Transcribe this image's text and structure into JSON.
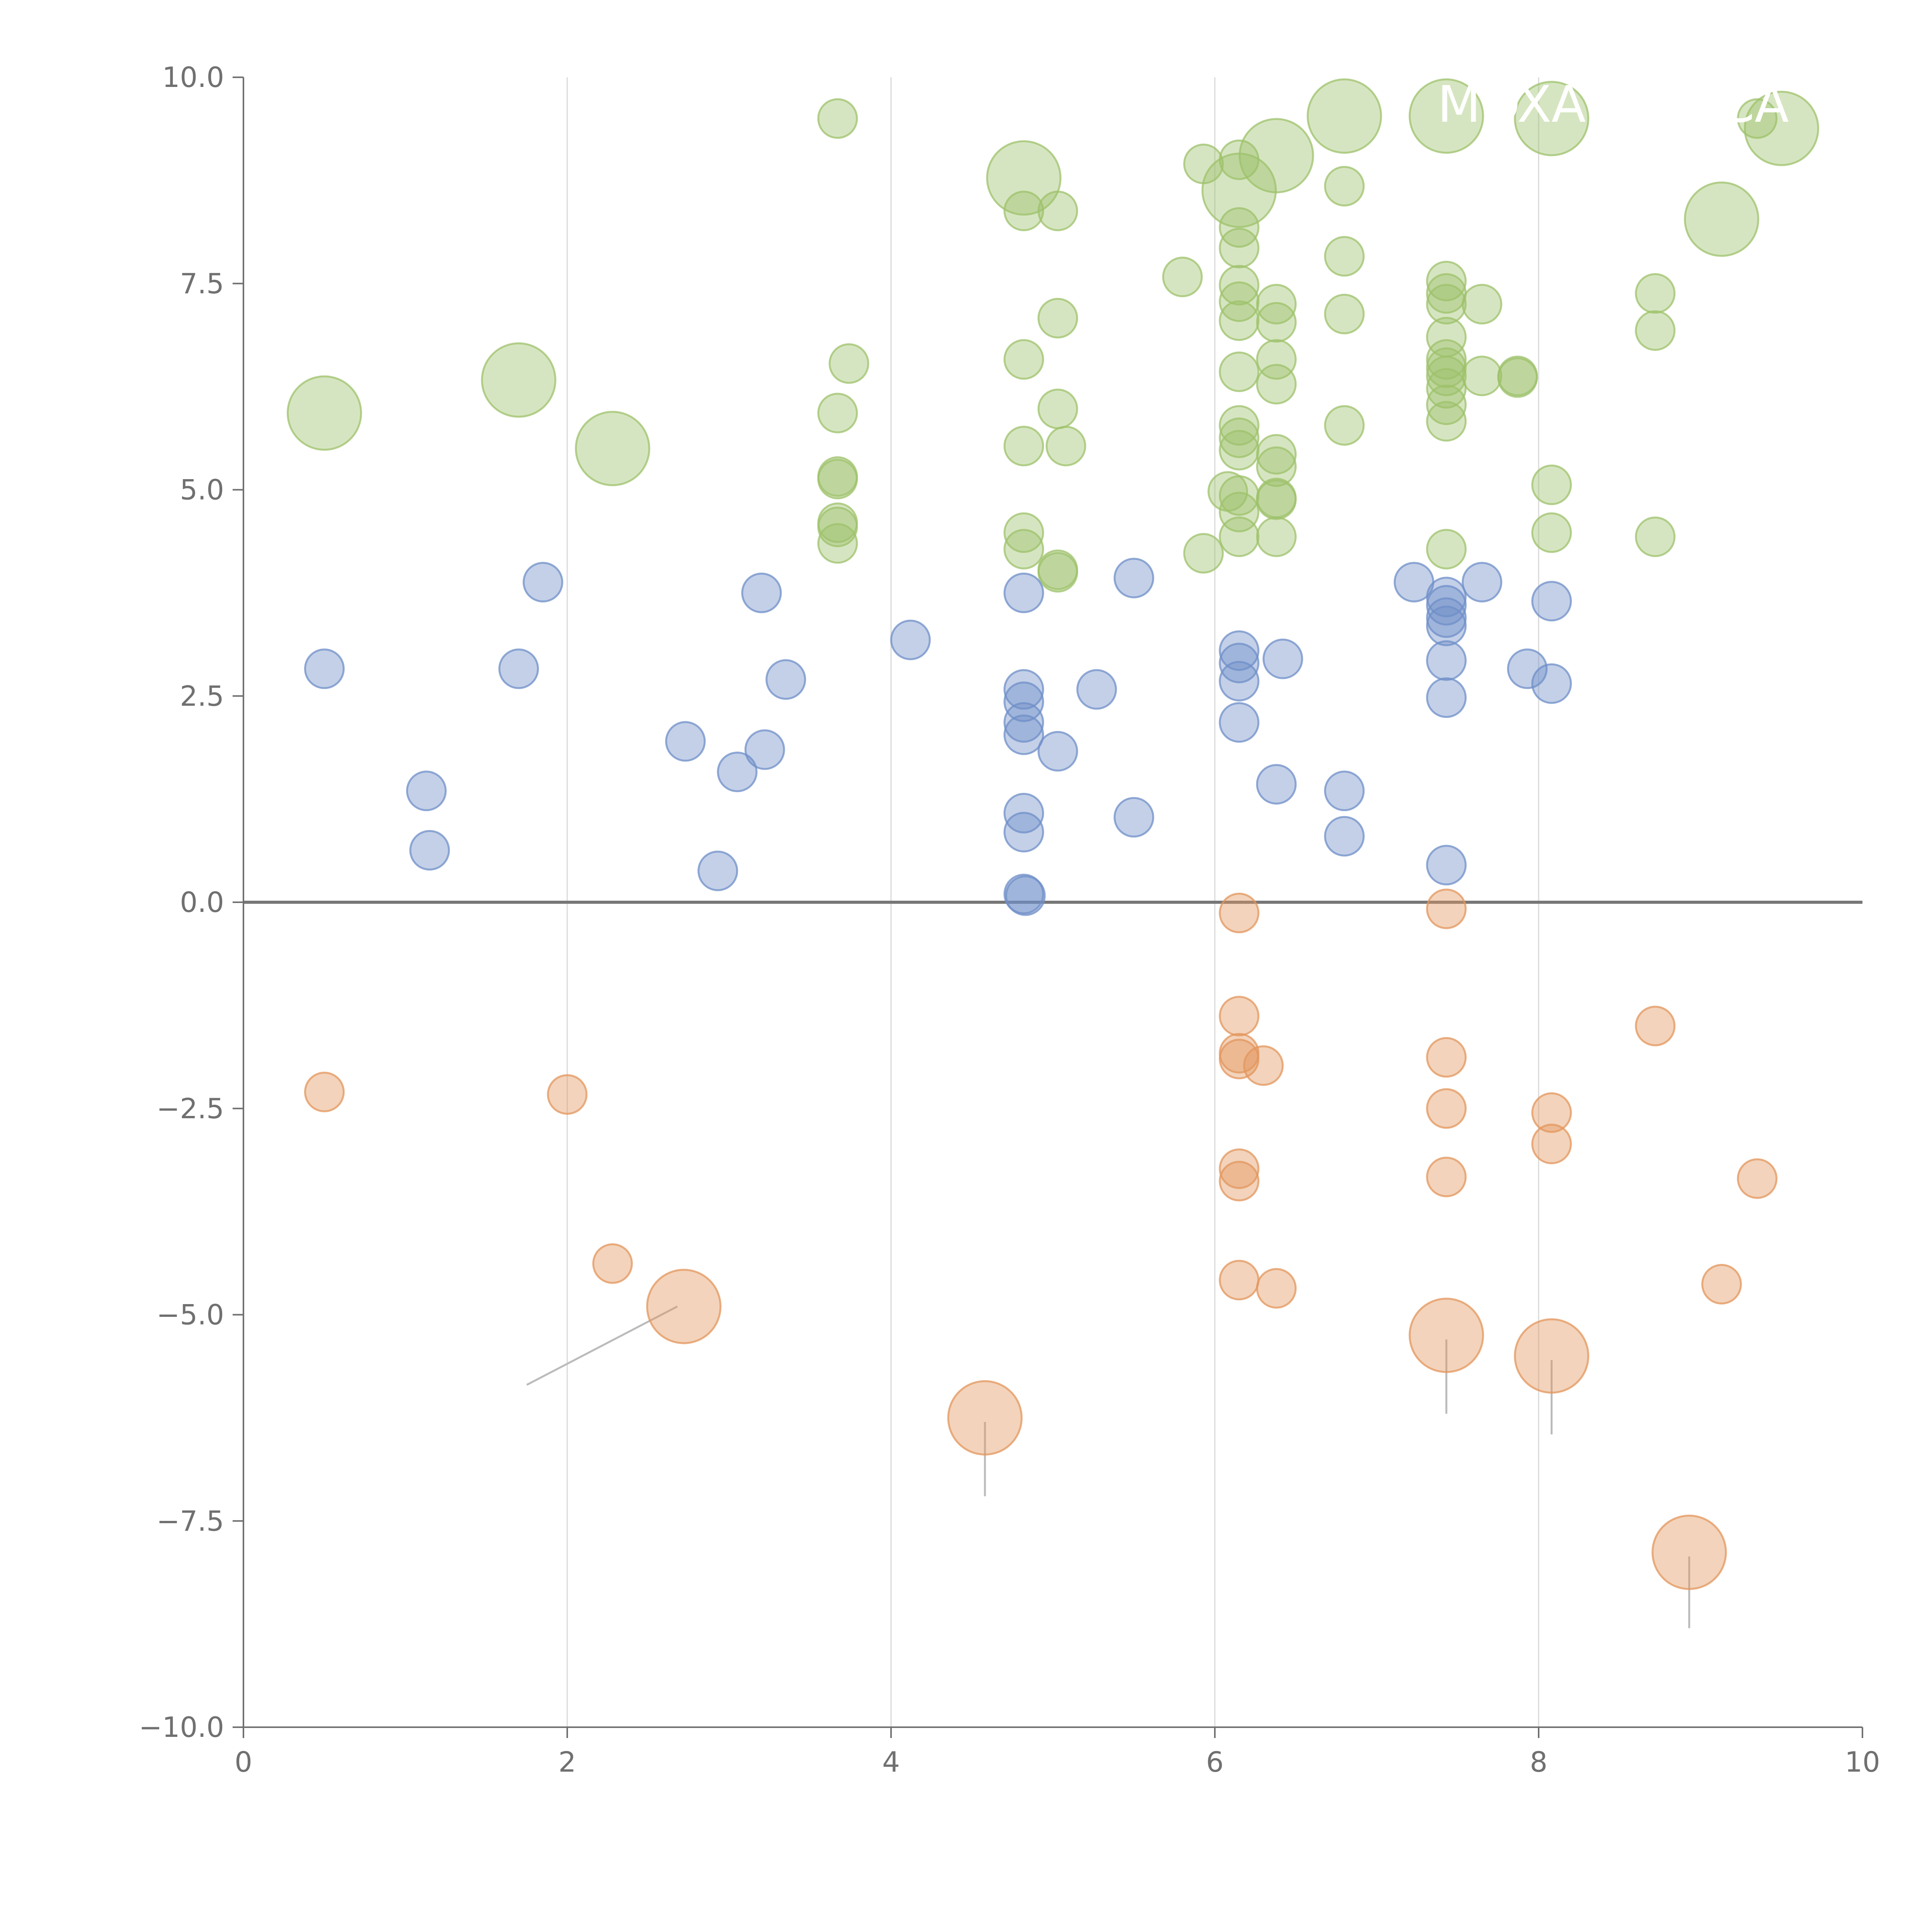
{
  "colors": {
    "green": "#9dc16b",
    "blue": "#6f8fc8",
    "orange": "#e3955c",
    "axis": "#707070",
    "grid": "#d9d9d9",
    "zero_line": "#777777",
    "leader": "#bbbbbb"
  },
  "chart_data": {
    "type": "scatter",
    "title": "",
    "xlabel": "",
    "ylabel": "",
    "xlim": [
      0,
      10
    ],
    "ylim": [
      -10,
      10
    ],
    "x_ticks": [
      0,
      2,
      4,
      6,
      8,
      10
    ],
    "x_tick_labels": [
      "0",
      "2",
      "4",
      "6",
      "8",
      "10"
    ],
    "y_ticks": [
      10,
      7.5,
      5,
      2.5,
      0,
      -2.5,
      -5,
      -7.5,
      -10
    ],
    "y_tick_labels": [
      "10.0",
      "7.5",
      "5.0",
      "2.5",
      "0.0",
      "−2.5",
      "−5.0",
      "−7.5",
      "−10.0"
    ],
    "grid_x": [
      2,
      4,
      6,
      8
    ],
    "zero_line": 0,
    "annotation_text": [
      "MOXA",
      "CA"
    ],
    "series": [
      {
        "name": "green",
        "color": "green",
        "points": [
          [
            3.67,
            9.5
          ],
          [
            5.93,
            8.95
          ],
          [
            6.15,
            9.0
          ],
          [
            4.82,
            8.38
          ],
          [
            5.03,
            8.38
          ],
          [
            6.8,
            8.68
          ],
          [
            6.15,
            8.18
          ],
          [
            6.15,
            7.93
          ],
          [
            6.8,
            7.83
          ],
          [
            5.8,
            7.58
          ],
          [
            6.15,
            7.48
          ],
          [
            6.15,
            7.28
          ],
          [
            6.15,
            7.05
          ],
          [
            6.38,
            7.25
          ],
          [
            6.38,
            7.03
          ],
          [
            6.8,
            7.13
          ],
          [
            7.43,
            7.53
          ],
          [
            7.43,
            7.38
          ],
          [
            7.43,
            7.25
          ],
          [
            7.65,
            7.25
          ],
          [
            7.43,
            6.85
          ],
          [
            5.03,
            7.08
          ],
          [
            3.74,
            6.53
          ],
          [
            4.82,
            6.58
          ],
          [
            6.15,
            6.43
          ],
          [
            6.38,
            6.58
          ],
          [
            6.38,
            6.28
          ],
          [
            7.43,
            6.58
          ],
          [
            7.43,
            6.48
          ],
          [
            7.43,
            6.38
          ],
          [
            7.43,
            6.23
          ],
          [
            7.65,
            6.38
          ],
          [
            7.87,
            6.38
          ],
          [
            7.87,
            6.36
          ],
          [
            7.43,
            6.03
          ],
          [
            7.43,
            5.83
          ],
          [
            8.72,
            7.38
          ],
          [
            8.72,
            6.93
          ],
          [
            3.67,
            5.93
          ],
          [
            5.03,
            5.98
          ],
          [
            6.15,
            5.78
          ],
          [
            6.15,
            5.63
          ],
          [
            6.15,
            5.48
          ],
          [
            5.08,
            5.53
          ],
          [
            4.82,
            5.53
          ],
          [
            6.38,
            5.43
          ],
          [
            6.38,
            5.28
          ],
          [
            6.8,
            5.78
          ],
          [
            3.67,
            5.13
          ],
          [
            3.67,
            5.16
          ],
          [
            6.08,
            4.98
          ],
          [
            6.15,
            4.93
          ],
          [
            6.15,
            4.73
          ],
          [
            6.38,
            4.88
          ],
          [
            6.38,
            4.9
          ],
          [
            8.08,
            5.06
          ],
          [
            3.67,
            4.6
          ],
          [
            3.67,
            4.55
          ],
          [
            4.82,
            4.48
          ],
          [
            4.82,
            4.28
          ],
          [
            3.67,
            4.35
          ],
          [
            5.03,
            4.03
          ],
          [
            5.03,
            4.0
          ],
          [
            5.93,
            4.23
          ],
          [
            6.15,
            4.43
          ],
          [
            6.38,
            4.43
          ],
          [
            7.43,
            4.28
          ],
          [
            8.08,
            4.48
          ],
          [
            8.72,
            4.43
          ],
          [
            9.35,
            9.5
          ]
        ],
        "bubbles": [
          [
            0.5,
            5.93
          ],
          [
            1.7,
            6.33
          ],
          [
            2.28,
            5.5
          ],
          [
            4.82,
            8.78
          ],
          [
            6.15,
            8.63
          ],
          [
            6.38,
            9.05
          ],
          [
            6.8,
            9.53
          ],
          [
            7.43,
            9.53
          ],
          [
            8.08,
            9.5
          ],
          [
            9.13,
            8.28
          ],
          [
            9.5,
            9.38
          ]
        ]
      },
      {
        "name": "blue",
        "color": "blue",
        "points": [
          [
            0.5,
            2.83
          ],
          [
            1.13,
            1.35
          ],
          [
            1.15,
            0.63
          ],
          [
            1.7,
            2.83
          ],
          [
            1.85,
            3.88
          ],
          [
            2.73,
            1.95
          ],
          [
            2.93,
            0.38
          ],
          [
            3.05,
            1.58
          ],
          [
            3.2,
            3.75
          ],
          [
            3.22,
            1.85
          ],
          [
            3.35,
            2.7
          ],
          [
            4.12,
            3.18
          ],
          [
            4.82,
            3.75
          ],
          [
            4.82,
            2.58
          ],
          [
            4.82,
            2.43
          ],
          [
            4.82,
            2.18
          ],
          [
            4.82,
            2.03
          ],
          [
            5.03,
            1.83
          ],
          [
            4.82,
            1.08
          ],
          [
            4.82,
            0.85
          ],
          [
            4.82,
            0.1
          ],
          [
            4.83,
            0.08
          ],
          [
            5.27,
            2.58
          ],
          [
            5.5,
            3.93
          ],
          [
            5.5,
            1.03
          ],
          [
            6.15,
            3.05
          ],
          [
            6.15,
            2.9
          ],
          [
            6.15,
            2.68
          ],
          [
            6.15,
            2.18
          ],
          [
            6.42,
            2.95
          ],
          [
            6.38,
            1.43
          ],
          [
            6.8,
            1.35
          ],
          [
            6.8,
            0.8
          ],
          [
            7.23,
            3.88
          ],
          [
            7.43,
            3.7
          ],
          [
            7.43,
            3.6
          ],
          [
            7.43,
            3.45
          ],
          [
            7.43,
            3.35
          ],
          [
            7.43,
            2.93
          ],
          [
            7.43,
            2.48
          ],
          [
            7.43,
            0.45
          ],
          [
            7.65,
            3.88
          ],
          [
            7.93,
            2.83
          ],
          [
            8.08,
            3.65
          ],
          [
            8.08,
            2.65
          ]
        ]
      },
      {
        "name": "orange",
        "color": "orange",
        "points": [
          [
            0.5,
            -2.3
          ],
          [
            2.0,
            -2.33
          ],
          [
            2.28,
            -4.38
          ],
          [
            6.15,
            -0.13
          ],
          [
            6.15,
            -1.38
          ],
          [
            6.15,
            -1.83
          ],
          [
            6.15,
            -1.9
          ],
          [
            6.3,
            -1.98
          ],
          [
            6.15,
            -3.23
          ],
          [
            6.15,
            -3.38
          ],
          [
            6.15,
            -4.58
          ],
          [
            6.38,
            -4.68
          ],
          [
            7.43,
            -0.08
          ],
          [
            7.43,
            -1.88
          ],
          [
            7.43,
            -2.5
          ],
          [
            7.43,
            -3.33
          ],
          [
            8.08,
            -2.55
          ],
          [
            8.08,
            -2.93
          ],
          [
            8.72,
            -1.5
          ],
          [
            9.13,
            -4.63
          ],
          [
            9.35,
            -3.35
          ]
        ],
        "bubbles": [
          [
            2.72,
            -4.9
          ],
          [
            4.58,
            -6.25
          ],
          [
            7.43,
            -5.25
          ],
          [
            8.08,
            -5.5
          ],
          [
            8.93,
            -7.88
          ]
        ]
      }
    ],
    "leader_lines": [
      [
        1.75,
        -5.85,
        2.68,
        -4.9
      ],
      [
        4.58,
        -7.2,
        4.58,
        -6.3
      ],
      [
        7.43,
        -6.2,
        7.43,
        -5.3
      ],
      [
        8.08,
        -6.45,
        8.08,
        -5.55
      ],
      [
        8.93,
        -8.8,
        8.93,
        -7.93
      ]
    ]
  }
}
